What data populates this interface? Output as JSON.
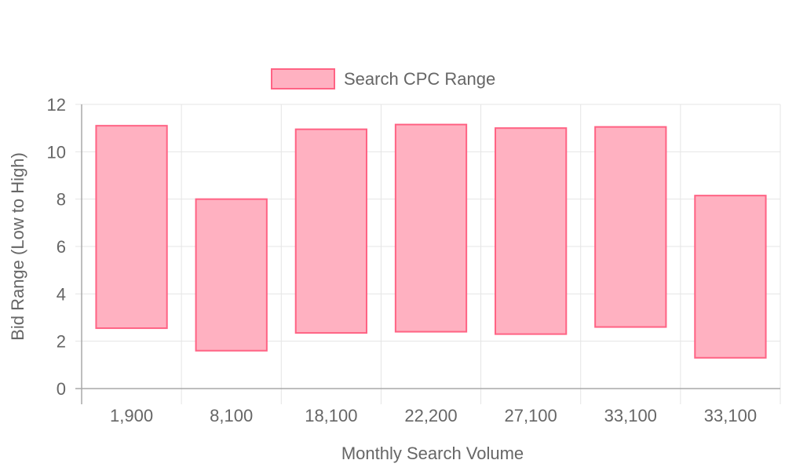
{
  "chart_data": {
    "type": "bar",
    "subtype": "floating-range",
    "categories": [
      "1,900",
      "8,100",
      "18,100",
      "22,200",
      "27,100",
      "33,100",
      "33,100"
    ],
    "series": [
      {
        "name": "Search CPC Range",
        "ranges": [
          [
            2.55,
            11.1
          ],
          [
            1.6,
            8.0
          ],
          [
            2.35,
            10.95
          ],
          [
            2.4,
            11.15
          ],
          [
            2.3,
            11.0
          ],
          [
            2.6,
            11.05
          ],
          [
            1.3,
            8.15
          ]
        ]
      }
    ],
    "xlabel": "Monthly Search Volume",
    "ylabel": "Bid Range (Low to High)",
    "ylim": [
      0,
      12
    ],
    "yticks": [
      "0",
      "2",
      "4",
      "6",
      "8",
      "10",
      "12"
    ],
    "grid": true,
    "legend_position": "top-center",
    "colors": {
      "bar_fill": "#ffb1c1",
      "bar_border": "#ff6384",
      "grid": "#e5e5e5",
      "axis": "#a8a8a8",
      "text": "#666666"
    }
  }
}
